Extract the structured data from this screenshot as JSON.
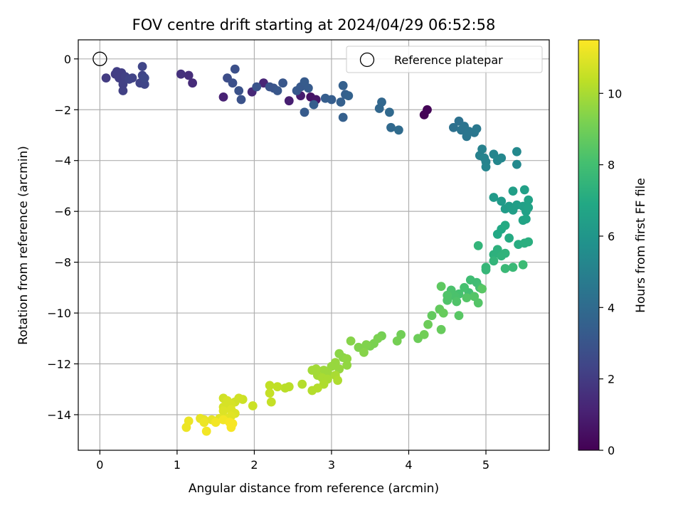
{
  "chart_data": {
    "type": "scatter",
    "title": "FOV centre drift starting at 2024/04/29 06:52:58",
    "xlabel": "Angular distance from reference (arcmin)",
    "ylabel": "Rotation from reference (arcmin)",
    "xlim": [
      -0.28,
      5.82
    ],
    "ylim": [
      -15.4,
      0.75
    ],
    "xticks": [
      0,
      1,
      2,
      3,
      4,
      5
    ],
    "yticks": [
      0,
      -2,
      -4,
      -6,
      -8,
      -10,
      -12,
      -14
    ],
    "grid": true,
    "legend": {
      "placement": "top-right",
      "entries": [
        "Reference platepar"
      ]
    },
    "reference_point": {
      "x": 0,
      "y": 0
    },
    "colorbar": {
      "label": "Hours from first FF file",
      "range": [
        0,
        11.5
      ],
      "ticks": [
        0,
        2,
        4,
        6,
        8,
        10
      ],
      "colormap": "viridis"
    },
    "series": [
      {
        "points": [
          [
            4.2,
            -2.2
          ],
          [
            4.24,
            -2.0
          ],
          [
            2.73,
            -1.5
          ],
          [
            2.8,
            -1.6
          ],
          [
            2.6,
            -1.45
          ],
          [
            2.45,
            -1.65
          ],
          [
            1.6,
            -1.5
          ],
          [
            2.12,
            -0.95
          ],
          [
            1.97,
            -1.3
          ],
          [
            1.2,
            -0.95
          ],
          [
            1.15,
            -0.65
          ],
          [
            1.05,
            -0.6
          ]
        ],
        "hours": [
          0.05,
          0.1,
          0.6,
          0.7,
          0.9,
          1.0,
          1.1,
          1.2,
          1.3,
          1.4,
          1.5,
          1.6
        ]
      },
      {
        "points": [
          [
            0.08,
            -0.75
          ],
          [
            0.2,
            -0.6
          ],
          [
            0.22,
            -0.5
          ],
          [
            0.25,
            -0.75
          ],
          [
            0.28,
            -0.55
          ],
          [
            0.3,
            -1.0
          ],
          [
            0.3,
            -1.25
          ],
          [
            0.33,
            -0.7
          ],
          [
            0.38,
            -0.8
          ],
          [
            0.42,
            -0.75
          ],
          [
            0.52,
            -0.95
          ],
          [
            0.55,
            -0.65
          ],
          [
            0.55,
            -0.3
          ],
          [
            0.58,
            -1.0
          ],
          [
            0.58,
            -0.75
          ]
        ],
        "hours": [
          2.0,
          2.0,
          2.1,
          2.1,
          2.1,
          2.2,
          2.2,
          2.2,
          2.3,
          2.3,
          2.3,
          2.4,
          2.4,
          2.4,
          2.5
        ]
      },
      {
        "points": [
          [
            1.65,
            -0.75
          ],
          [
            1.72,
            -0.95
          ],
          [
            1.75,
            -0.4
          ],
          [
            1.8,
            -1.25
          ],
          [
            1.83,
            -1.6
          ],
          [
            2.03,
            -1.1
          ],
          [
            2.2,
            -1.1
          ],
          [
            2.25,
            -1.15
          ],
          [
            2.3,
            -1.25
          ],
          [
            2.37,
            -0.95
          ],
          [
            2.55,
            -1.25
          ],
          [
            2.6,
            -1.1
          ],
          [
            2.65,
            -0.9
          ],
          [
            2.65,
            -2.1
          ],
          [
            2.7,
            -1.15
          ],
          [
            2.77,
            -1.8
          ],
          [
            2.92,
            -1.55
          ],
          [
            3.0,
            -1.6
          ],
          [
            3.12,
            -1.7
          ],
          [
            3.15,
            -1.05
          ],
          [
            3.15,
            -2.3
          ],
          [
            3.18,
            -1.4
          ],
          [
            3.22,
            -1.45
          ]
        ],
        "hours": [
          2.7,
          2.8,
          2.8,
          2.9,
          2.9,
          3.0,
          3.0,
          3.0,
          3.1,
          3.1,
          3.2,
          3.2,
          3.3,
          3.3,
          3.3,
          3.4,
          3.4,
          3.4,
          3.5,
          3.5,
          3.5,
          3.5,
          3.6
        ]
      },
      {
        "points": [
          [
            3.62,
            -1.95
          ],
          [
            3.65,
            -1.7
          ],
          [
            3.75,
            -2.1
          ],
          [
            3.77,
            -2.7
          ],
          [
            3.87,
            -2.8
          ],
          [
            4.58,
            -2.7
          ],
          [
            4.65,
            -2.45
          ],
          [
            4.68,
            -2.8
          ],
          [
            4.72,
            -2.65
          ],
          [
            4.75,
            -3.05
          ],
          [
            4.78,
            -2.85
          ],
          [
            4.85,
            -2.9
          ],
          [
            4.88,
            -2.75
          ]
        ],
        "hours": [
          3.8,
          3.8,
          3.9,
          3.9,
          4.0,
          4.3,
          4.3,
          4.4,
          4.4,
          4.5,
          4.5,
          4.5,
          4.6
        ]
      },
      {
        "points": [
          [
            4.92,
            -3.8
          ],
          [
            4.95,
            -3.55
          ],
          [
            4.98,
            -3.9
          ],
          [
            5.0,
            -4.05
          ],
          [
            5.0,
            -4.25
          ],
          [
            5.1,
            -3.75
          ],
          [
            5.15,
            -4.0
          ],
          [
            5.2,
            -3.9
          ],
          [
            5.4,
            -3.65
          ],
          [
            5.4,
            -4.15
          ]
        ],
        "hours": [
          5.0,
          5.0,
          5.1,
          5.1,
          5.2,
          5.2,
          5.3,
          5.3,
          5.4,
          5.4
        ]
      },
      {
        "points": [
          [
            5.1,
            -5.45
          ],
          [
            5.2,
            -5.6
          ],
          [
            5.25,
            -5.9
          ],
          [
            5.3,
            -5.8
          ],
          [
            5.35,
            -5.2
          ],
          [
            5.35,
            -5.95
          ],
          [
            5.4,
            -5.75
          ],
          [
            5.48,
            -5.8
          ],
          [
            5.5,
            -5.15
          ],
          [
            5.52,
            -6.0
          ],
          [
            5.55,
            -5.55
          ],
          [
            5.55,
            -5.85
          ],
          [
            5.48,
            -6.35
          ],
          [
            5.52,
            -6.3
          ],
          [
            5.15,
            -6.9
          ],
          [
            5.2,
            -6.7
          ],
          [
            5.25,
            -6.55
          ],
          [
            5.3,
            -7.05
          ],
          [
            5.42,
            -7.3
          ]
        ],
        "hours": [
          6.2,
          6.2,
          6.3,
          6.3,
          6.4,
          6.4,
          6.4,
          6.5,
          6.5,
          6.5,
          6.6,
          6.6,
          6.7,
          6.7,
          6.9,
          6.9,
          7.0,
          7.0,
          7.1
        ]
      },
      {
        "points": [
          [
            5.55,
            -7.2
          ],
          [
            5.5,
            -7.25
          ],
          [
            5.1,
            -7.7
          ],
          [
            5.15,
            -7.5
          ],
          [
            5.25,
            -7.65
          ],
          [
            5.2,
            -7.75
          ],
          [
            5.1,
            -7.95
          ],
          [
            4.9,
            -7.35
          ],
          [
            5.0,
            -8.2
          ],
          [
            5.0,
            -8.3
          ],
          [
            5.25,
            -8.25
          ],
          [
            5.35,
            -8.2
          ],
          [
            5.48,
            -8.1
          ],
          [
            4.8,
            -8.7
          ],
          [
            4.88,
            -8.8
          ],
          [
            4.92,
            -9.0
          ],
          [
            4.78,
            -9.2
          ],
          [
            4.72,
            -9.0
          ],
          [
            4.65,
            -9.25
          ],
          [
            4.6,
            -9.35
          ],
          [
            4.55,
            -9.1
          ],
          [
            4.5,
            -9.3
          ],
          [
            4.5,
            -9.5
          ],
          [
            4.62,
            -9.55
          ],
          [
            4.75,
            -9.4
          ],
          [
            4.85,
            -9.35
          ],
          [
            4.9,
            -9.6
          ],
          [
            4.95,
            -9.05
          ],
          [
            4.65,
            -10.1
          ]
        ],
        "hours": [
          7.2,
          7.2,
          7.3,
          7.3,
          7.4,
          7.4,
          7.5,
          7.5,
          7.6,
          7.6,
          7.7,
          7.7,
          7.8,
          7.9,
          7.9,
          8.0,
          8.0,
          8.1,
          8.1,
          8.2,
          8.2,
          8.3,
          8.3,
          8.3,
          8.4,
          8.4,
          8.4,
          8.5,
          8.5
        ]
      },
      {
        "points": [
          [
            4.42,
            -8.95
          ],
          [
            4.3,
            -10.1
          ],
          [
            4.4,
            -9.85
          ],
          [
            4.45,
            -10.0
          ],
          [
            4.42,
            -10.65
          ],
          [
            4.25,
            -10.45
          ],
          [
            4.12,
            -11.0
          ],
          [
            4.2,
            -10.85
          ],
          [
            3.9,
            -10.85
          ],
          [
            3.85,
            -11.1
          ],
          [
            3.65,
            -10.9
          ],
          [
            3.6,
            -11.0
          ],
          [
            3.55,
            -11.2
          ],
          [
            3.5,
            -11.3
          ],
          [
            3.45,
            -11.25
          ],
          [
            3.35,
            -11.35
          ],
          [
            3.42,
            -11.55
          ],
          [
            3.25,
            -11.1
          ]
        ],
        "hours": [
          8.6,
          8.7,
          8.7,
          8.8,
          8.8,
          8.9,
          8.9,
          9.0,
          9.0,
          9.1,
          9.1,
          9.2,
          9.2,
          9.2,
          9.3,
          9.3,
          9.4,
          9.4
        ]
      },
      {
        "points": [
          [
            3.1,
            -11.6
          ],
          [
            3.15,
            -11.75
          ],
          [
            3.2,
            -11.8
          ],
          [
            3.2,
            -12.05
          ],
          [
            3.1,
            -12.2
          ],
          [
            3.05,
            -11.95
          ],
          [
            3.0,
            -12.1
          ],
          [
            2.95,
            -12.35
          ],
          [
            2.9,
            -12.25
          ],
          [
            2.85,
            -12.3
          ],
          [
            2.82,
            -12.45
          ],
          [
            2.8,
            -12.2
          ],
          [
            2.75,
            -12.25
          ],
          [
            2.88,
            -12.55
          ],
          [
            2.95,
            -12.6
          ],
          [
            3.05,
            -12.45
          ],
          [
            3.08,
            -12.65
          ],
          [
            2.9,
            -12.8
          ],
          [
            2.82,
            -12.95
          ],
          [
            2.75,
            -13.05
          ],
          [
            2.62,
            -12.8
          ]
        ],
        "hours": [
          9.5,
          9.5,
          9.6,
          9.6,
          9.7,
          9.7,
          9.7,
          9.8,
          9.8,
          9.8,
          9.9,
          9.9,
          9.9,
          10.0,
          10.0,
          10.0,
          10.1,
          10.1,
          10.2,
          10.2,
          10.2
        ]
      },
      {
        "points": [
          [
            2.45,
            -12.9
          ],
          [
            2.4,
            -12.95
          ],
          [
            2.3,
            -12.9
          ],
          [
            2.2,
            -12.85
          ],
          [
            2.2,
            -13.15
          ],
          [
            2.22,
            -13.5
          ],
          [
            1.98,
            -13.65
          ],
          [
            1.85,
            -13.4
          ],
          [
            1.8,
            -13.35
          ],
          [
            1.75,
            -13.5
          ],
          [
            1.6,
            -13.35
          ],
          [
            1.65,
            -13.45
          ],
          [
            1.7,
            -13.6
          ],
          [
            1.6,
            -13.7
          ],
          [
            1.7,
            -13.8
          ],
          [
            1.6,
            -13.85
          ],
          [
            1.75,
            -13.95
          ],
          [
            1.7,
            -14.05
          ],
          [
            1.65,
            -14.15
          ],
          [
            1.55,
            -14.15
          ],
          [
            1.45,
            -14.2
          ],
          [
            1.35,
            -14.2
          ],
          [
            1.3,
            -14.15
          ],
          [
            1.15,
            -14.25
          ],
          [
            1.12,
            -14.5
          ],
          [
            1.35,
            -14.3
          ],
          [
            1.38,
            -14.65
          ],
          [
            1.5,
            -14.3
          ],
          [
            1.6,
            -14.2
          ],
          [
            1.68,
            -14.3
          ],
          [
            1.7,
            -14.5
          ],
          [
            1.72,
            -14.35
          ]
        ],
        "hours": [
          10.3,
          10.3,
          10.4,
          10.4,
          10.5,
          10.5,
          10.6,
          10.6,
          10.7,
          10.7,
          10.7,
          10.8,
          10.8,
          10.8,
          10.9,
          10.9,
          10.9,
          11.0,
          11.0,
          11.0,
          11.1,
          11.1,
          11.1,
          11.2,
          11.2,
          11.2,
          11.3,
          11.3,
          11.3,
          11.4,
          11.4,
          11.4
        ]
      }
    ]
  }
}
